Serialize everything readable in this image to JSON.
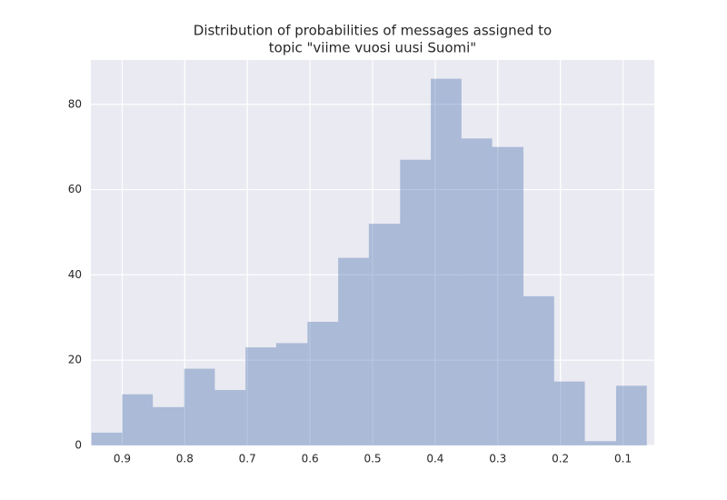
{
  "chart_data": {
    "type": "histogram",
    "title": [
      "Distribution of probabilities of messages assigned to",
      "topic \"viime vuosi uusi Suomi\""
    ],
    "bins": [
      0.062,
      0.111,
      0.161,
      0.21,
      0.259,
      0.309,
      0.358,
      0.407,
      0.456,
      0.506,
      0.555,
      0.604,
      0.654,
      0.703,
      0.752,
      0.801,
      0.851,
      0.9,
      0.949
    ],
    "counts": [
      14,
      1,
      15,
      35,
      70,
      72,
      86,
      67,
      52,
      44,
      29,
      24,
      23,
      13,
      18,
      9,
      12,
      3
    ],
    "color": "#4c72b0",
    "xlim": [
      0.95,
      0.05
    ],
    "xticks": [
      0.9,
      0.8,
      0.7,
      0.6,
      0.5,
      0.4,
      0.3,
      0.2,
      0.1
    ],
    "ylim": [
      0,
      90.4
    ],
    "yticks": [
      0,
      20,
      40,
      60,
      80
    ],
    "grid": true,
    "background": "#eaeaf2"
  }
}
